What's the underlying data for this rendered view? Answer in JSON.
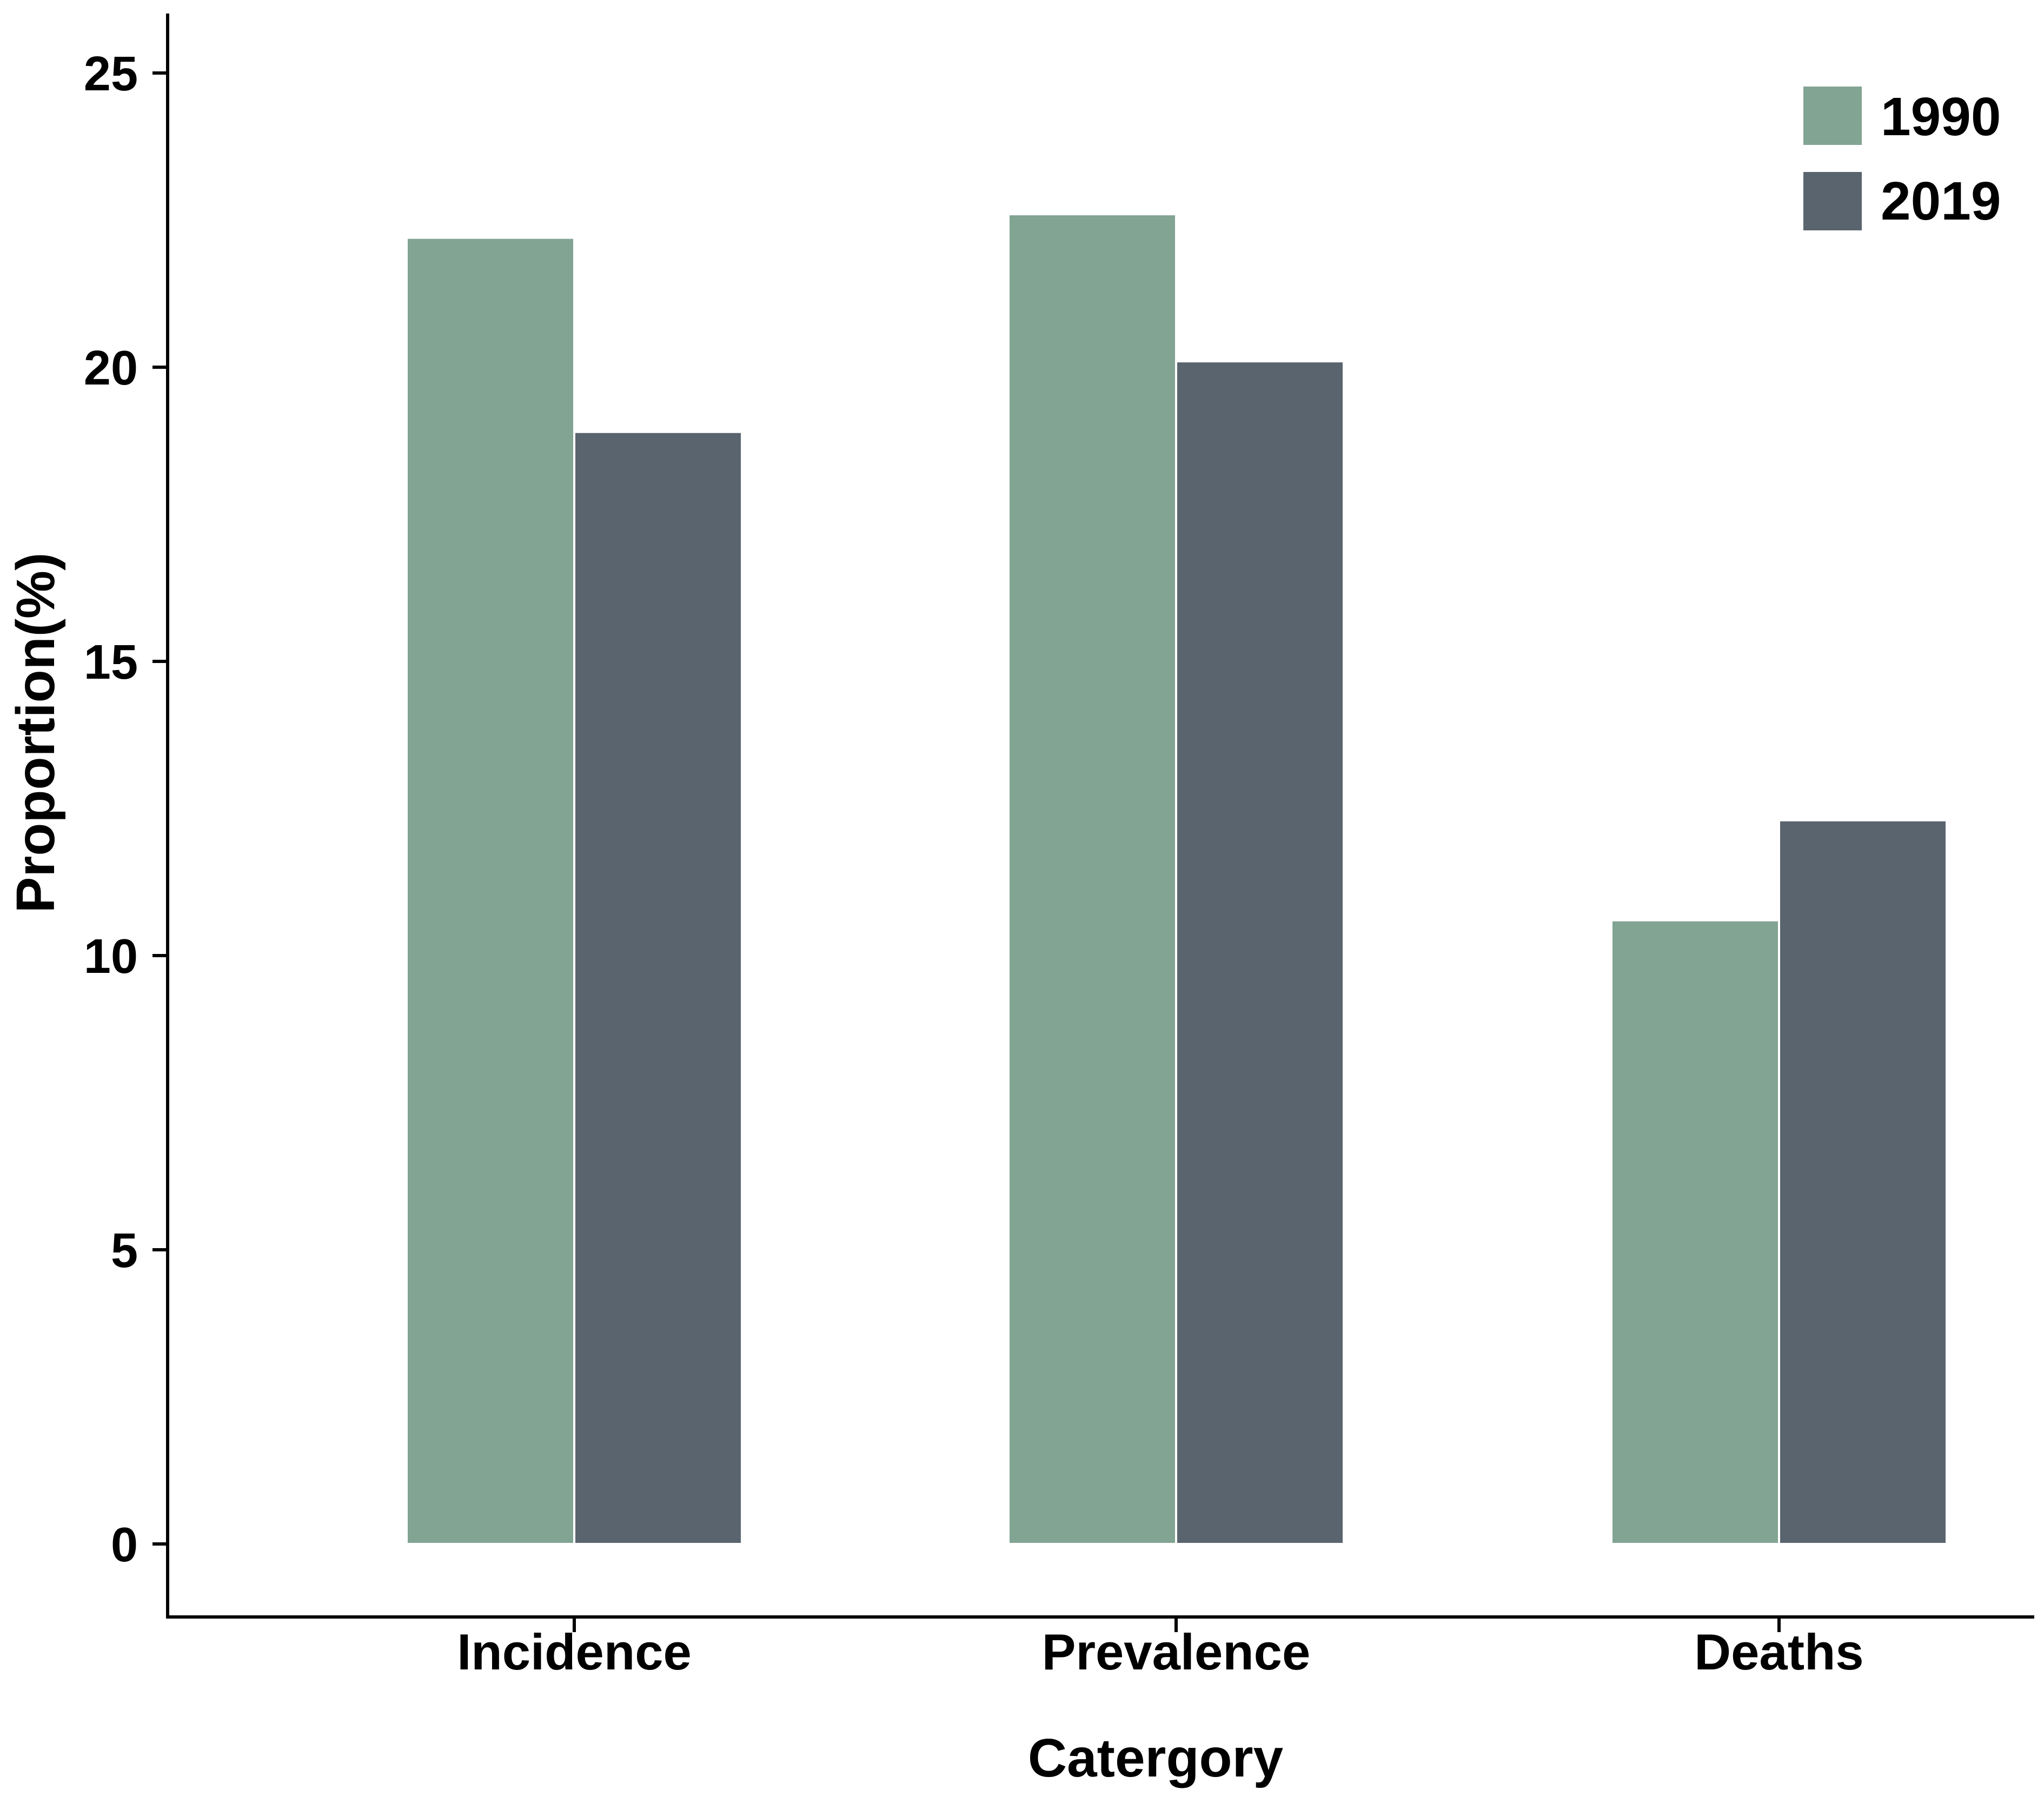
{
  "chart_data": {
    "type": "bar",
    "title": "",
    "xlabel": "Catergory",
    "ylabel": "Proportion(%)",
    "categories": [
      "Incidence",
      "Prevalence",
      "Deaths"
    ],
    "series": [
      {
        "name": "1990",
        "color": "#82a492",
        "values": [
          22.2,
          22.6,
          10.6
        ]
      },
      {
        "name": "2019",
        "color": "#59646e",
        "values": [
          18.9,
          20.1,
          12.3
        ]
      }
    ],
    "yticks": [
      0,
      5,
      10,
      15,
      20,
      25
    ],
    "ylim": [
      -1.2,
      26
    ],
    "grid": false,
    "legend_position": "top-right"
  }
}
